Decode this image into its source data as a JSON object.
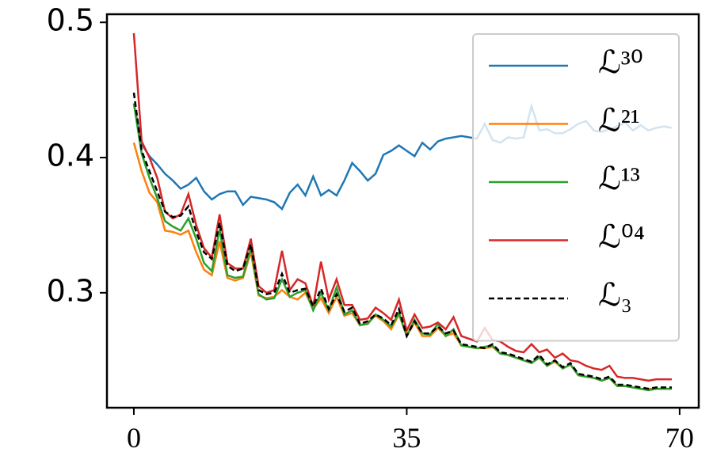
{
  "chart_data": {
    "type": "line",
    "x": [
      0,
      1,
      2,
      3,
      4,
      5,
      6,
      7,
      8,
      9,
      10,
      11,
      12,
      13,
      14,
      15,
      16,
      17,
      18,
      19,
      20,
      21,
      22,
      23,
      24,
      25,
      26,
      27,
      28,
      29,
      30,
      31,
      32,
      33,
      34,
      35,
      36,
      37,
      38,
      39,
      40,
      41,
      42,
      43,
      44,
      45,
      46,
      47,
      48,
      49,
      50,
      51,
      52,
      53,
      54,
      55,
      56,
      57,
      58,
      59,
      60,
      61,
      62,
      63,
      64,
      65,
      66,
      67,
      68,
      69
    ],
    "series": [
      {
        "name": "ℒ³⁰",
        "color": "#1f77b4",
        "linestyle": "solid",
        "values": [
          0.44,
          0.41,
          0.401,
          0.395,
          0.388,
          0.383,
          0.377,
          0.38,
          0.385,
          0.375,
          0.369,
          0.373,
          0.375,
          0.375,
          0.365,
          0.371,
          0.37,
          0.369,
          0.367,
          0.362,
          0.374,
          0.38,
          0.372,
          0.386,
          0.372,
          0.376,
          0.372,
          0.383,
          0.396,
          0.39,
          0.383,
          0.388,
          0.402,
          0.405,
          0.409,
          0.405,
          0.401,
          0.411,
          0.406,
          0.412,
          0.414,
          0.415,
          0.416,
          0.415,
          0.414,
          0.425,
          0.413,
          0.411,
          0.415,
          0.414,
          0.415,
          0.438,
          0.42,
          0.421,
          0.418,
          0.418,
          0.421,
          0.425,
          0.427,
          0.42,
          0.419,
          0.421,
          0.423,
          0.426,
          0.42,
          0.424,
          0.42,
          0.422,
          0.423,
          0.422
        ]
      },
      {
        "name": "ℒ²¹",
        "color": "#ff7f0e",
        "linestyle": "solid",
        "values": [
          0.411,
          0.39,
          0.374,
          0.367,
          0.346,
          0.345,
          0.343,
          0.346,
          0.33,
          0.317,
          0.313,
          0.338,
          0.311,
          0.309,
          0.311,
          0.33,
          0.298,
          0.296,
          0.297,
          0.302,
          0.297,
          0.295,
          0.3,
          0.288,
          0.296,
          0.285,
          0.297,
          0.283,
          0.285,
          0.276,
          0.278,
          0.283,
          0.279,
          0.273,
          0.284,
          0.268,
          0.278,
          0.268,
          0.268,
          0.274,
          0.268,
          0.27,
          0.261,
          0.26,
          0.259,
          0.259,
          0.26,
          0.255,
          0.254,
          0.252,
          0.25,
          0.248,
          0.253,
          0.246,
          0.249,
          0.244,
          0.247,
          0.239,
          0.238,
          0.237,
          0.235,
          0.237,
          0.231,
          0.231,
          0.23,
          0.229,
          0.229,
          0.229,
          0.229,
          0.229
        ]
      },
      {
        "name": "ℒ¹³",
        "color": "#2ca02c",
        "linestyle": "solid",
        "values": [
          0.44,
          0.403,
          0.385,
          0.37,
          0.353,
          0.349,
          0.346,
          0.355,
          0.34,
          0.322,
          0.316,
          0.347,
          0.313,
          0.311,
          0.312,
          0.333,
          0.299,
          0.295,
          0.296,
          0.31,
          0.297,
          0.3,
          0.302,
          0.287,
          0.3,
          0.287,
          0.304,
          0.284,
          0.287,
          0.276,
          0.277,
          0.284,
          0.28,
          0.275,
          0.285,
          0.268,
          0.28,
          0.27,
          0.269,
          0.277,
          0.268,
          0.273,
          0.261,
          0.26,
          0.259,
          0.26,
          0.261,
          0.255,
          0.254,
          0.252,
          0.25,
          0.248,
          0.252,
          0.246,
          0.25,
          0.244,
          0.247,
          0.239,
          0.238,
          0.237,
          0.235,
          0.237,
          0.231,
          0.231,
          0.23,
          0.229,
          0.228,
          0.229,
          0.229,
          0.229
        ]
      },
      {
        "name": "ℒ⁰⁴",
        "color": "#d62728",
        "linestyle": "solid",
        "values": [
          0.492,
          0.412,
          0.4,
          0.385,
          0.36,
          0.355,
          0.358,
          0.373,
          0.35,
          0.333,
          0.326,
          0.358,
          0.322,
          0.318,
          0.318,
          0.34,
          0.305,
          0.3,
          0.302,
          0.331,
          0.302,
          0.31,
          0.307,
          0.29,
          0.323,
          0.295,
          0.31,
          0.291,
          0.291,
          0.28,
          0.281,
          0.289,
          0.285,
          0.28,
          0.295,
          0.272,
          0.284,
          0.274,
          0.275,
          0.278,
          0.273,
          0.282,
          0.268,
          0.266,
          0.264,
          0.274,
          0.265,
          0.264,
          0.26,
          0.257,
          0.256,
          0.262,
          0.256,
          0.258,
          0.252,
          0.255,
          0.25,
          0.249,
          0.246,
          0.244,
          0.243,
          0.246,
          0.238,
          0.237,
          0.237,
          0.236,
          0.235,
          0.236,
          0.236,
          0.236
        ]
      },
      {
        "name": "ℒ₃",
        "color": "#000000",
        "linestyle": "dashed",
        "values": [
          0.448,
          0.405,
          0.39,
          0.375,
          0.36,
          0.356,
          0.357,
          0.364,
          0.345,
          0.33,
          0.325,
          0.352,
          0.32,
          0.316,
          0.318,
          0.336,
          0.302,
          0.299,
          0.3,
          0.314,
          0.3,
          0.302,
          0.303,
          0.29,
          0.303,
          0.288,
          0.299,
          0.286,
          0.289,
          0.277,
          0.279,
          0.284,
          0.281,
          0.276,
          0.288,
          0.268,
          0.279,
          0.27,
          0.27,
          0.275,
          0.27,
          0.272,
          0.262,
          0.261,
          0.26,
          0.259,
          0.262,
          0.256,
          0.255,
          0.253,
          0.251,
          0.249,
          0.254,
          0.247,
          0.25,
          0.245,
          0.248,
          0.24,
          0.239,
          0.238,
          0.236,
          0.238,
          0.232,
          0.232,
          0.231,
          0.23,
          0.229,
          0.23,
          0.23,
          0.23
        ]
      }
    ],
    "xlim": [
      -3.45,
      72.45
    ],
    "xticks": [
      0,
      35,
      70
    ],
    "ylim": [
      0.215,
      0.506
    ],
    "yticks": [
      0.3,
      0.4,
      0.5
    ],
    "legend": "upper right"
  }
}
